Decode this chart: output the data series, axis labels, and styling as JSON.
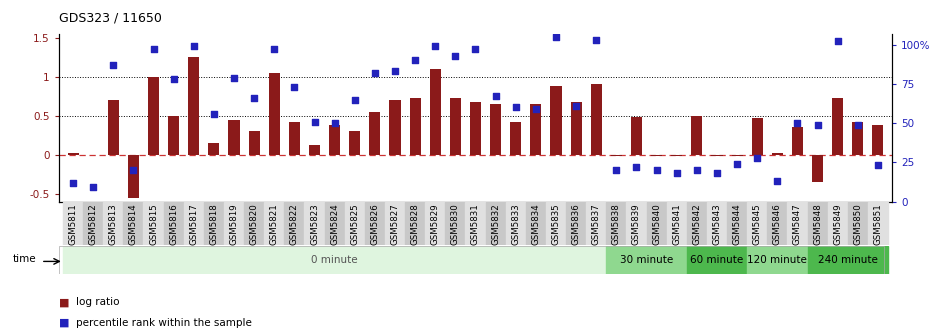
{
  "title": "GDS323 / 11650",
  "categories": [
    "GSM5811",
    "GSM5812",
    "GSM5813",
    "GSM5814",
    "GSM5815",
    "GSM5816",
    "GSM5817",
    "GSM5818",
    "GSM5819",
    "GSM5820",
    "GSM5821",
    "GSM5822",
    "GSM5823",
    "GSM5824",
    "GSM5825",
    "GSM5826",
    "GSM5827",
    "GSM5828",
    "GSM5829",
    "GSM5830",
    "GSM5831",
    "GSM5832",
    "GSM5833",
    "GSM5834",
    "GSM5835",
    "GSM5836",
    "GSM5837",
    "GSM5838",
    "GSM5839",
    "GSM5840",
    "GSM5841",
    "GSM5842",
    "GSM5843",
    "GSM5844",
    "GSM5845",
    "GSM5846",
    "GSM5847",
    "GSM5848",
    "GSM5849",
    "GSM5850",
    "GSM5851"
  ],
  "log_ratio": [
    0.02,
    0.0,
    0.7,
    -0.55,
    1.0,
    0.5,
    1.25,
    0.15,
    0.45,
    0.3,
    1.05,
    0.42,
    0.12,
    0.38,
    0.3,
    0.55,
    0.7,
    0.72,
    1.1,
    0.73,
    0.68,
    0.65,
    0.42,
    0.65,
    0.88,
    0.68,
    0.9,
    -0.02,
    0.48,
    -0.02,
    -0.02,
    0.5,
    -0.02,
    -0.02,
    0.47,
    0.02,
    0.35,
    -0.35,
    0.72,
    0.42,
    0.38
  ],
  "percentile_rank_pct": [
    12,
    9,
    87,
    20,
    97,
    78,
    99,
    56,
    79,
    66,
    97,
    73,
    51,
    50,
    65,
    82,
    83,
    90,
    99,
    93,
    97,
    67,
    60,
    59,
    105,
    61,
    103,
    20,
    22,
    20,
    18,
    20,
    18,
    24,
    28,
    13,
    50,
    49,
    102,
    49,
    23
  ],
  "bar_color": "#8B1A1A",
  "dot_color": "#2222BB",
  "ylim_left": [
    -0.6,
    1.55
  ],
  "ylim_right": [
    0,
    107
  ],
  "yticks_left": [
    -0.5,
    0.0,
    0.5,
    1.0,
    1.5
  ],
  "ytick_labels_left": [
    "-0.5",
    "0",
    "0.5",
    "1",
    "1.5"
  ],
  "yticks_right": [
    0,
    25,
    50,
    75,
    100
  ],
  "ytick_labels_right": [
    "0",
    "25",
    "50",
    "75",
    "100%"
  ],
  "time_groups": [
    {
      "label": "0 minute",
      "start": 0,
      "end": 27,
      "color": "#dff5df"
    },
    {
      "label": "30 minute",
      "start": 27,
      "end": 31,
      "color": "#8fd88f"
    },
    {
      "label": "60 minute",
      "start": 31,
      "end": 34,
      "color": "#4db84d"
    },
    {
      "label": "120 minute",
      "start": 34,
      "end": 37,
      "color": "#8fd88f"
    },
    {
      "label": "240 minute",
      "start": 37,
      "end": 41,
      "color": "#4db84d"
    }
  ],
  "legend_log_ratio_label": "log ratio",
  "legend_pct_label": "percentile rank within the sample",
  "time_label": "time"
}
